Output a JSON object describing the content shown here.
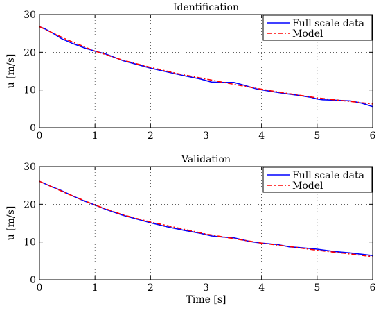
{
  "chart_data": [
    {
      "type": "line",
      "title": "Identification",
      "xlabel": "",
      "ylabel": "u [m/s]",
      "xlim": [
        0,
        6
      ],
      "ylim": [
        0,
        30
      ],
      "xticks": [
        0,
        1,
        2,
        3,
        4,
        5,
        6
      ],
      "yticks": [
        0,
        10,
        20,
        30
      ],
      "grid": true,
      "legend_position": "top-right",
      "series": [
        {
          "name": "Full scale data",
          "color": "#0000ff",
          "style": "solid",
          "x": [
            0,
            0.1,
            0.25,
            0.4,
            0.6,
            0.8,
            1.0,
            1.2,
            1.5,
            1.8,
            2.0,
            2.3,
            2.6,
            2.9,
            3.1,
            3.3,
            3.5,
            3.7,
            3.9,
            4.1,
            4.4,
            4.7,
            4.9,
            5.0,
            5.1,
            5.3,
            5.6,
            5.8,
            6.0
          ],
          "y": [
            26.8,
            26.2,
            25.0,
            23.6,
            22.3,
            21.2,
            20.3,
            19.5,
            17.8,
            16.6,
            15.8,
            14.8,
            13.8,
            12.9,
            12.1,
            12.0,
            12.0,
            11.2,
            10.3,
            9.8,
            9.1,
            8.5,
            8.0,
            7.6,
            7.4,
            7.3,
            7.1,
            6.5,
            5.6
          ]
        },
        {
          "name": "Model",
          "color": "#ff0000",
          "style": "dashdot",
          "x": [
            0,
            0.5,
            1.0,
            1.5,
            2.0,
            2.5,
            3.0,
            3.5,
            4.0,
            4.5,
            5.0,
            5.5,
            6.0
          ],
          "y": [
            26.8,
            23.3,
            20.3,
            17.9,
            16.0,
            14.3,
            12.9,
            11.5,
            10.2,
            9.0,
            7.9,
            7.1,
            6.3
          ]
        }
      ]
    },
    {
      "type": "line",
      "title": "Validation",
      "xlabel": "Time [s]",
      "ylabel": "u [m/s]",
      "xlim": [
        0,
        6
      ],
      "ylim": [
        0,
        30
      ],
      "xticks": [
        0,
        1,
        2,
        3,
        4,
        5,
        6
      ],
      "yticks": [
        0,
        10,
        20,
        30
      ],
      "grid": true,
      "legend_position": "top-right",
      "series": [
        {
          "name": "Full scale data",
          "color": "#0000ff",
          "style": "solid",
          "x": [
            0,
            0.2,
            0.4,
            0.6,
            0.8,
            1.0,
            1.2,
            1.5,
            1.8,
            2.0,
            2.3,
            2.6,
            2.9,
            3.1,
            3.3,
            3.5,
            3.8,
            4.0,
            4.3,
            4.5,
            4.7,
            5.0,
            5.3,
            5.6,
            6.0
          ],
          "y": [
            26.1,
            24.8,
            23.6,
            22.2,
            20.9,
            19.8,
            18.6,
            17.1,
            15.9,
            15.1,
            14.0,
            13.1,
            12.3,
            11.6,
            11.3,
            11.1,
            10.1,
            9.7,
            9.3,
            8.7,
            8.5,
            8.1,
            7.5,
            7.1,
            6.4
          ]
        },
        {
          "name": "Model",
          "color": "#ff0000",
          "style": "dashdot",
          "x": [
            0,
            0.5,
            1.0,
            1.5,
            2.0,
            2.5,
            3.0,
            3.5,
            4.0,
            4.5,
            5.0,
            5.5,
            6.0
          ],
          "y": [
            26.1,
            22.8,
            19.8,
            17.2,
            15.3,
            13.7,
            12.1,
            10.9,
            9.7,
            8.8,
            7.8,
            7.0,
            6.1
          ]
        }
      ]
    }
  ]
}
